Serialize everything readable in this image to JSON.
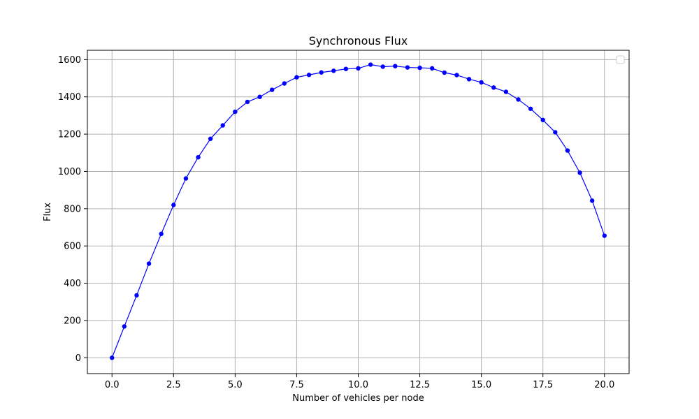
{
  "chart_data": {
    "type": "line",
    "title": "Synchronous Flux",
    "xlabel": "Number of vehicles per node",
    "ylabel": "Flux",
    "xlim": [
      -1.0,
      21.0
    ],
    "ylim": [
      -85,
      1650
    ],
    "xticks": [
      0.0,
      2.5,
      5.0,
      7.5,
      10.0,
      12.5,
      15.0,
      17.5,
      20.0
    ],
    "xtick_labels": [
      "0.0",
      "2.5",
      "5.0",
      "7.5",
      "10.0",
      "12.5",
      "15.0",
      "17.5",
      "20.0"
    ],
    "yticks": [
      0,
      200,
      400,
      600,
      800,
      1000,
      1200,
      1400,
      1600
    ],
    "ytick_labels": [
      "0",
      "200",
      "400",
      "600",
      "800",
      "1000",
      "1200",
      "1400",
      "1600"
    ],
    "grid": true,
    "legend": "top-right (empty)",
    "colors": {
      "series": "#0000ff",
      "grid": "#b0b0b0"
    },
    "series": [
      {
        "marker": "circle",
        "x": [
          0.0,
          0.5,
          1.0,
          1.5,
          2.0,
          2.5,
          3.0,
          3.5,
          4.0,
          4.5,
          5.0,
          5.5,
          6.0,
          6.5,
          7.0,
          7.5,
          8.0,
          8.5,
          9.0,
          9.5,
          10.0,
          10.5,
          11.0,
          11.5,
          12.0,
          12.5,
          13.0,
          13.5,
          14.0,
          14.5,
          15.0,
          15.5,
          16.0,
          16.5,
          17.0,
          17.5,
          18.0,
          18.5,
          19.0,
          19.5,
          20.0
        ],
        "y": [
          0,
          168,
          335,
          505,
          665,
          820,
          962,
          1076,
          1175,
          1247,
          1320,
          1373,
          1400,
          1438,
          1472,
          1505,
          1518,
          1531,
          1540,
          1550,
          1553,
          1573,
          1562,
          1565,
          1558,
          1556,
          1553,
          1530,
          1517,
          1495,
          1478,
          1450,
          1427,
          1386,
          1336,
          1276,
          1210,
          1112,
          993,
          843,
          655
        ]
      }
    ]
  }
}
